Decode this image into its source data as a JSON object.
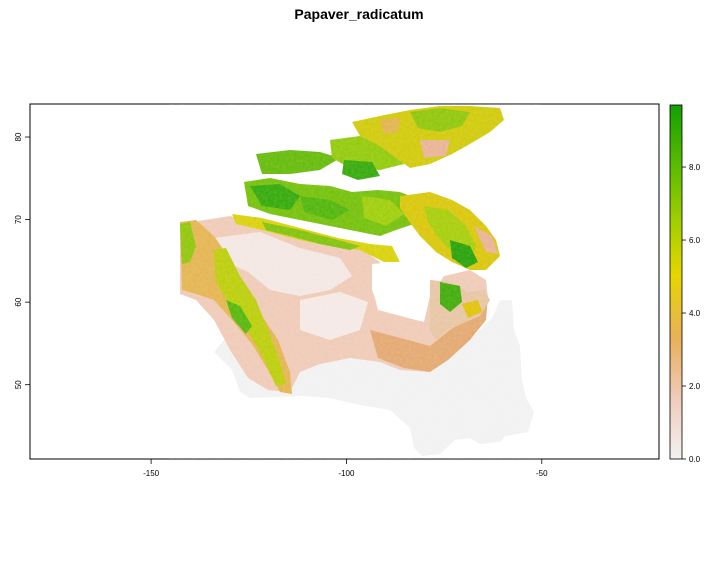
{
  "title": "Papaver_radicatum",
  "map": {
    "x_axis": {
      "range": [
        -181,
        -20
      ],
      "ticks": [
        -150,
        -100,
        -50
      ],
      "tick_labels": [
        "-150",
        "-100",
        "-50"
      ]
    },
    "y_axis": {
      "range": [
        41,
        84
      ],
      "ticks": [
        50,
        60,
        70,
        80
      ],
      "tick_labels": [
        "50",
        "60",
        "70",
        "80"
      ]
    },
    "raster_extent": "Canada",
    "colors": {
      "no_data": "#ffffff",
      "ramp": [
        "#f2f2f2",
        "#f1c6b0",
        "#e8b05a",
        "#e6d600",
        "#a6d000",
        "#5fbd00",
        "#12a000"
      ]
    }
  },
  "legend": {
    "type": "continuous colorbar",
    "range": [
      0,
      9.7
    ],
    "ticks": [
      0,
      2,
      4,
      6,
      8
    ],
    "tick_labels": [
      "0.0",
      "2.0",
      "4.0",
      "6.0",
      "8.0"
    ]
  }
}
